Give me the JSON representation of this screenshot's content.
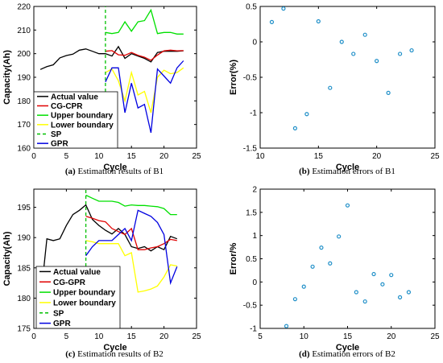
{
  "chart_data": [
    {
      "id": "a",
      "type": "line",
      "caption": {
        "tag": "(a)",
        "text": " Estimation results of B1"
      },
      "xlabel": "Cycle",
      "ylabel": "Capacity(Ah)",
      "xlim": [
        0,
        25
      ],
      "ylim": [
        160,
        220
      ],
      "xticks": [
        0,
        5,
        10,
        15,
        20,
        25
      ],
      "yticks": [
        160,
        170,
        180,
        190,
        200,
        210,
        220
      ],
      "legend_position": "bottom-left",
      "series": [
        {
          "name": "Actual value",
          "color": "#000000",
          "dash": "",
          "x": [
            1,
            2,
            3,
            4,
            5,
            6,
            7,
            8,
            9,
            10,
            11,
            12,
            13,
            14,
            15,
            16,
            17,
            18,
            19,
            20,
            21,
            22,
            23
          ],
          "y": [
            193.3,
            194.5,
            195.3,
            198.2,
            199.2,
            199.8,
            201.5,
            202.0,
            201.0,
            200.0,
            200.0,
            199.0,
            203.0,
            198.0,
            200.0,
            199.0,
            198.0,
            196.5,
            200.5,
            201.0,
            201.0,
            201.0,
            201.2
          ]
        },
        {
          "name": "CG-CPR",
          "color": "#e00000",
          "dash": "",
          "x": [
            11,
            12,
            13,
            14,
            15,
            16,
            17,
            18,
            19,
            20,
            21,
            22,
            23
          ],
          "y": [
            201.0,
            201.3,
            199.5,
            199.3,
            200.5,
            199.3,
            198.5,
            197.2,
            199.4,
            201.2,
            201.5,
            201.2,
            201.3
          ]
        },
        {
          "name": "Upper boundary",
          "color": "#00e000",
          "dash": "",
          "x": [
            11,
            12,
            13,
            14,
            15,
            16,
            17,
            18,
            19,
            20,
            21,
            22,
            23
          ],
          "y": [
            209.0,
            208.5,
            209.0,
            213.5,
            209.5,
            213.5,
            214.0,
            218.5,
            208.5,
            209.0,
            209.0,
            208.3,
            208.3
          ]
        },
        {
          "name": "Lower boundary",
          "color": "#ffff00",
          "dash": "",
          "x": [
            11,
            12,
            13,
            14,
            15,
            16,
            17,
            18,
            19,
            20,
            21,
            22,
            23
          ],
          "y": [
            192.0,
            193.5,
            188.5,
            180.0,
            192.0,
            182.5,
            184.0,
            175.0,
            190.0,
            193.0,
            191.5,
            192.0,
            194.0
          ]
        },
        {
          "name": "SP",
          "color": "#00c000",
          "dash": "4,3",
          "x": [
            11,
            11
          ],
          "y": [
            160,
            220
          ]
        },
        {
          "name": "GPR",
          "color": "#0000e0",
          "dash": "",
          "x": [
            11,
            12,
            13,
            14,
            15,
            16,
            17,
            18,
            19,
            20,
            21,
            22,
            23
          ],
          "y": [
            188.0,
            194.0,
            194.0,
            175.0,
            187.5,
            177.0,
            178.5,
            166.5,
            193.5,
            190.5,
            187.5,
            194.0,
            197.0
          ]
        }
      ]
    },
    {
      "id": "b",
      "type": "scatter",
      "caption": {
        "tag": "(b)",
        "text": " Estimation errors of B1"
      },
      "xlabel": "Cycle",
      "ylabel": "Error(%)",
      "xlim": [
        10,
        25
      ],
      "ylim": [
        -1.5,
        0.5
      ],
      "xticks": [
        10,
        15,
        20,
        25
      ],
      "yticks": [
        -1.5,
        -1,
        -0.5,
        0,
        0.5
      ],
      "marker_color": "#1f8fc8",
      "points": {
        "x": [
          11,
          12,
          13,
          14,
          15,
          16,
          17,
          18,
          19,
          20,
          21,
          22,
          23
        ],
        "y": [
          0.28,
          0.47,
          -1.22,
          -1.02,
          0.29,
          -0.65,
          0.0,
          -0.17,
          0.1,
          -0.27,
          -0.72,
          -0.17,
          -0.12
        ]
      }
    },
    {
      "id": "c",
      "type": "line",
      "caption": {
        "tag": "(c)",
        "text": " Estimation results of B2"
      },
      "xlabel": "Cycle",
      "ylabel": "Capacity(Ah)",
      "xlim": [
        0,
        25
      ],
      "ylim": [
        175,
        198
      ],
      "xticks": [
        0,
        5,
        10,
        15,
        20,
        25
      ],
      "yticks": [
        175,
        180,
        185,
        190,
        195
      ],
      "legend_position": "bottom-left",
      "series": [
        {
          "name": "Actual value",
          "color": "#000000",
          "dash": "",
          "x": [
            1,
            2,
            3,
            4,
            5,
            6,
            7,
            8,
            9,
            10,
            11,
            12,
            13,
            14,
            15,
            16,
            17,
            18,
            19,
            20,
            21,
            22
          ],
          "y": [
            179.5,
            189.8,
            189.5,
            189.8,
            192.0,
            193.8,
            194.5,
            195.4,
            193.0,
            192.0,
            191.2,
            190.6,
            191.5,
            190.5,
            188.5,
            188.2,
            188.5,
            187.8,
            188.5,
            188.0,
            190.2,
            189.8
          ]
        },
        {
          "name": "CG-GPR",
          "color": "#e00000",
          "dash": "",
          "x": [
            8,
            9,
            10,
            11,
            12,
            13,
            14,
            15,
            16,
            17,
            18,
            19,
            20,
            21,
            22
          ],
          "y": [
            193.5,
            193.2,
            192.8,
            192.6,
            191.5,
            191.0,
            190.5,
            191.5,
            188.0,
            188.0,
            188.3,
            188.5,
            189.0,
            189.7,
            189.5
          ]
        },
        {
          "name": "Upper boundary",
          "color": "#00e000",
          "dash": "",
          "x": [
            8,
            9,
            10,
            11,
            12,
            13,
            14,
            15,
            16,
            17,
            18,
            19,
            20,
            21,
            22
          ],
          "y": [
            197.0,
            196.5,
            196.0,
            196.0,
            196.0,
            195.8,
            195.2,
            195.4,
            195.3,
            195.3,
            195.2,
            195.1,
            194.8,
            193.8,
            193.8
          ]
        },
        {
          "name": "Lower boundary",
          "color": "#ffff00",
          "dash": "",
          "x": [
            8,
            9,
            10,
            11,
            12,
            13,
            14,
            15,
            16,
            17,
            18,
            19,
            20,
            21,
            22
          ],
          "y": [
            189.5,
            189.3,
            189.0,
            189.0,
            189.0,
            189.0,
            187.0,
            187.5,
            181.0,
            181.2,
            181.5,
            182.0,
            183.5,
            185.5,
            185.3
          ]
        },
        {
          "name": "SP",
          "color": "#00c000",
          "dash": "4,3",
          "x": [
            8,
            8
          ],
          "y": [
            175,
            198
          ]
        },
        {
          "name": "GPR",
          "color": "#0000e0",
          "dash": "",
          "x": [
            8,
            9,
            10,
            11,
            12,
            13,
            14,
            15,
            16,
            17,
            18,
            19,
            20,
            21,
            22
          ],
          "y": [
            187.0,
            188.5,
            189.5,
            189.5,
            189.5,
            190.5,
            191.5,
            189.5,
            194.5,
            194.0,
            193.5,
            192.5,
            190.5,
            182.5,
            185.2
          ]
        }
      ]
    },
    {
      "id": "d",
      "type": "scatter",
      "caption": {
        "tag": "(d)",
        "text": " Estimation errors of B2"
      },
      "xlabel": "Cycle",
      "ylabel": "Error/%",
      "xlim": [
        5,
        25
      ],
      "ylim": [
        -1,
        2
      ],
      "xticks": [
        5,
        10,
        15,
        20,
        25
      ],
      "yticks": [
        -1,
        -0.5,
        0,
        0.5,
        1,
        1.5,
        2
      ],
      "marker_color": "#1f8fc8",
      "points": {
        "x": [
          8,
          9,
          10,
          11,
          12,
          13,
          14,
          15,
          16,
          17,
          18,
          19,
          20,
          21,
          22
        ],
        "y": [
          -0.95,
          -0.37,
          -0.1,
          0.33,
          0.74,
          0.4,
          0.98,
          1.65,
          -0.22,
          -0.42,
          0.17,
          -0.05,
          0.15,
          -0.33,
          -0.22
        ]
      }
    }
  ]
}
